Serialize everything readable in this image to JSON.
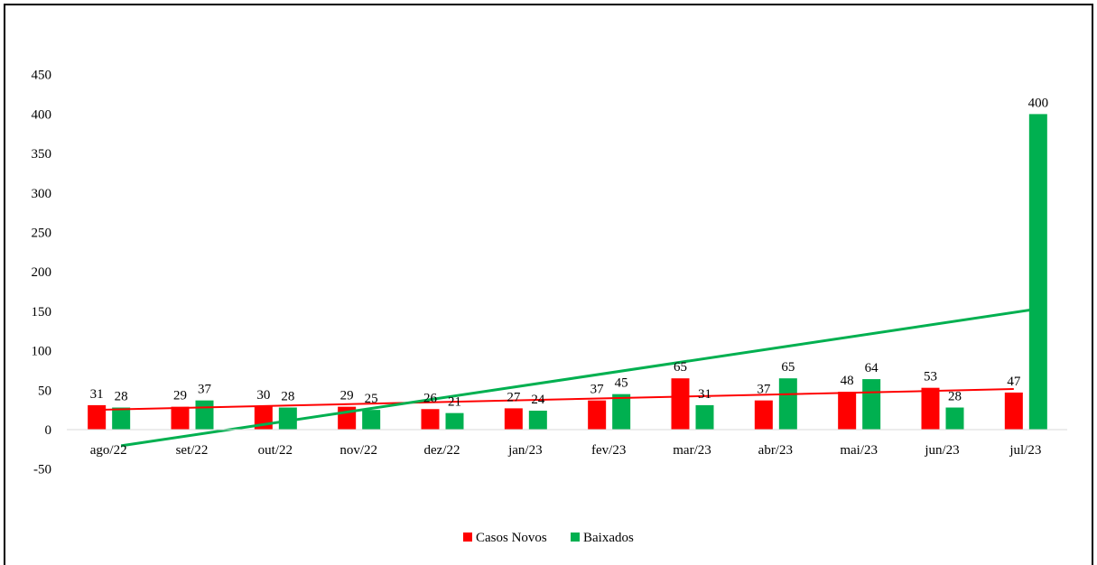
{
  "chart_data": {
    "type": "bar",
    "categories": [
      "ago/22",
      "set/22",
      "out/22",
      "nov/22",
      "dez/22",
      "jan/23",
      "fev/23",
      "mar/23",
      "abr/23",
      "mai/23",
      "jun/23",
      "jul/23"
    ],
    "series": [
      {
        "name": "Casos Novos",
        "color": "#ff0000",
        "values": [
          31,
          29,
          30,
          29,
          26,
          27,
          37,
          65,
          37,
          48,
          53,
          47
        ]
      },
      {
        "name": "Baixados",
        "color": "#00b050",
        "values": [
          28,
          37,
          28,
          25,
          21,
          24,
          45,
          31,
          65,
          64,
          28,
          400
        ]
      }
    ],
    "trendlines": [
      {
        "series": "Casos Novos",
        "type": "linear",
        "color": "#ff0000"
      },
      {
        "series": "Baixados",
        "type": "linear",
        "color": "#00b050"
      }
    ],
    "ylim": [
      -50,
      450
    ],
    "yticks": [
      "450",
      "400",
      "350",
      "300",
      "250",
      "200",
      "150",
      "100",
      "50",
      "0",
      "-50"
    ],
    "ytick_values": [
      450,
      400,
      350,
      300,
      250,
      200,
      150,
      100,
      50,
      0,
      -50
    ],
    "legend_position": "bottom",
    "grid": false
  }
}
